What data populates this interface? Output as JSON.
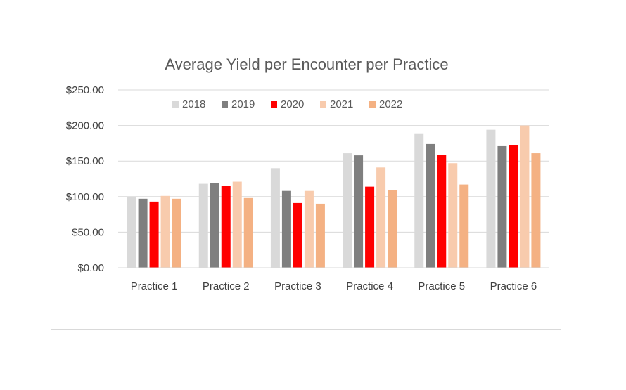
{
  "chart_data": {
    "type": "bar",
    "title": "Average Yield per Encounter per Practice",
    "xlabel": "",
    "ylabel": "",
    "ylim": [
      0,
      250
    ],
    "yticks": [
      "$0.00",
      "$50.00",
      "$100.00",
      "$150.00",
      "$200.00",
      "$250.00"
    ],
    "ytick_values": [
      0,
      50,
      100,
      150,
      200,
      250
    ],
    "grid": true,
    "legend_position": "top",
    "categories": [
      "Practice 1",
      "Practice 2",
      "Practice 3",
      "Practice 4",
      "Practice 5",
      "Practice 6"
    ],
    "series": [
      {
        "name": "2018",
        "color": "#d9d9d9",
        "values": [
          100,
          118,
          140,
          161,
          189,
          194
        ]
      },
      {
        "name": "2019",
        "color": "#7f7f7f",
        "values": [
          97,
          119,
          108,
          158,
          174,
          171
        ]
      },
      {
        "name": "2020",
        "color": "#ff0000",
        "values": [
          93,
          115,
          91,
          114,
          159,
          172
        ]
      },
      {
        "name": "2021",
        "color": "#f8cbad",
        "values": [
          101,
          121,
          108,
          141,
          147,
          200
        ]
      },
      {
        "name": "2022",
        "color": "#f4b183",
        "values": [
          97,
          98,
          90,
          109,
          117,
          161
        ]
      }
    ]
  }
}
